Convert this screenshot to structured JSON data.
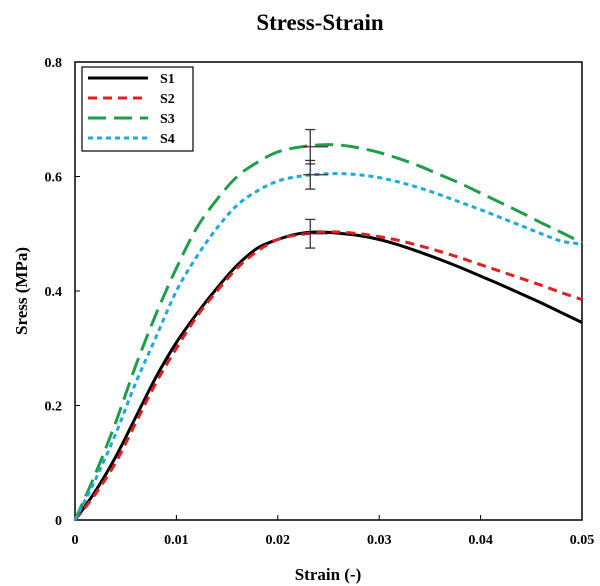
{
  "chart_data": {
    "type": "line",
    "title": "Stress-Strain",
    "xlabel": "Strain (-)",
    "ylabel": "Sress (MPa)",
    "xlim": [
      0,
      0.05
    ],
    "ylim": [
      0,
      0.8
    ],
    "xticks": [
      0,
      0.01,
      0.02,
      0.03,
      0.04,
      0.05
    ],
    "yticks": [
      0,
      0.2,
      0.4,
      0.6,
      0.8
    ],
    "xtick_labels": [
      "0",
      "0.01",
      "0.02",
      "0.03",
      "0.04",
      "0.05"
    ],
    "ytick_labels": [
      "0",
      "0.2",
      "0.4",
      "0.6",
      "0.8"
    ],
    "grid": false,
    "legend_position": "top-left",
    "series": [
      {
        "name": "S1",
        "color": "#000000",
        "dash": "solid",
        "x": [
          0,
          0.002,
          0.004,
          0.006,
          0.008,
          0.01,
          0.012,
          0.014,
          0.016,
          0.018,
          0.02,
          0.022,
          0.024,
          0.026,
          0.028,
          0.03,
          0.032,
          0.034,
          0.036,
          0.038,
          0.04,
          0.042,
          0.044,
          0.046,
          0.048,
          0.05
        ],
        "y": [
          0,
          0.05,
          0.11,
          0.18,
          0.25,
          0.31,
          0.36,
          0.405,
          0.445,
          0.475,
          0.49,
          0.5,
          0.503,
          0.501,
          0.497,
          0.49,
          0.48,
          0.468,
          0.455,
          0.441,
          0.426,
          0.411,
          0.395,
          0.379,
          0.362,
          0.345
        ]
      },
      {
        "name": "S2",
        "color": "#e02020",
        "dash": "dashed",
        "x": [
          0,
          0.002,
          0.004,
          0.006,
          0.008,
          0.01,
          0.012,
          0.014,
          0.016,
          0.018,
          0.02,
          0.022,
          0.024,
          0.026,
          0.028,
          0.03,
          0.032,
          0.034,
          0.036,
          0.038,
          0.04,
          0.042,
          0.044,
          0.046,
          0.048,
          0.05
        ],
        "y": [
          0,
          0.045,
          0.1,
          0.17,
          0.24,
          0.3,
          0.355,
          0.4,
          0.44,
          0.47,
          0.49,
          0.498,
          0.502,
          0.503,
          0.5,
          0.495,
          0.488,
          0.479,
          0.469,
          0.458,
          0.446,
          0.434,
          0.422,
          0.41,
          0.397,
          0.385
        ]
      },
      {
        "name": "S3",
        "color": "#1f9e4a",
        "dash": "longdash",
        "x": [
          0,
          0.002,
          0.004,
          0.006,
          0.008,
          0.01,
          0.012,
          0.014,
          0.016,
          0.018,
          0.02,
          0.022,
          0.024,
          0.026,
          0.028,
          0.03,
          0.032,
          0.034,
          0.036,
          0.038,
          0.04,
          0.042,
          0.044,
          0.046,
          0.048,
          0.05
        ],
        "y": [
          0,
          0.08,
          0.17,
          0.27,
          0.36,
          0.44,
          0.51,
          0.56,
          0.6,
          0.625,
          0.643,
          0.651,
          0.655,
          0.655,
          0.65,
          0.642,
          0.631,
          0.618,
          0.603,
          0.588,
          0.571,
          0.554,
          0.537,
          0.519,
          0.502,
          0.484
        ]
      },
      {
        "name": "S4",
        "color": "#1fa8e0",
        "dash": "dotted",
        "x": [
          0,
          0.002,
          0.004,
          0.006,
          0.008,
          0.01,
          0.012,
          0.014,
          0.016,
          0.018,
          0.02,
          0.022,
          0.024,
          0.026,
          0.028,
          0.03,
          0.032,
          0.034,
          0.036,
          0.038,
          0.04,
          0.042,
          0.044,
          0.046,
          0.048,
          0.05
        ],
        "y": [
          0,
          0.07,
          0.15,
          0.24,
          0.32,
          0.4,
          0.46,
          0.51,
          0.55,
          0.575,
          0.592,
          0.6,
          0.604,
          0.605,
          0.603,
          0.598,
          0.59,
          0.58,
          0.568,
          0.555,
          0.542,
          0.528,
          0.514,
          0.5,
          0.487,
          0.482
        ]
      }
    ],
    "error_bars": [
      {
        "series": "S1",
        "x": 0.0232,
        "y": 0.5,
        "err": 0.025,
        "color": "#333333"
      },
      {
        "series": "S3",
        "x": 0.0232,
        "y": 0.652,
        "err": 0.03,
        "color": "#333333"
      },
      {
        "series": "S4",
        "x": 0.0232,
        "y": 0.603,
        "err": 0.025,
        "color": "#333333"
      }
    ]
  }
}
